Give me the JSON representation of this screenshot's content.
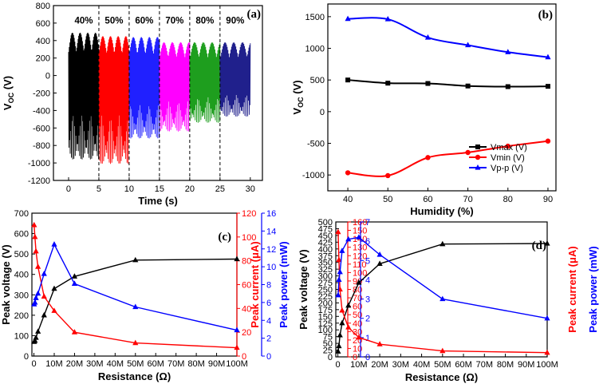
{
  "chart_data": [
    {
      "id": "a",
      "type": "line",
      "panel_label": "(a)",
      "xlabel": "Time (s)",
      "ylabel": "V",
      "ylabel_sub": "OC",
      "ylabel_unit": " (V)",
      "xlim": [
        -2.5,
        32
      ],
      "ylim": [
        -1200,
        800
      ],
      "x_ticks": [
        0,
        5,
        10,
        15,
        20,
        25,
        30
      ],
      "y_ticks": [
        -1200,
        -1000,
        -800,
        -600,
        -400,
        -200,
        0,
        200,
        400,
        600,
        800
      ],
      "section_boundaries": [
        5,
        10,
        15,
        20,
        25
      ],
      "segments": [
        {
          "label": "40%",
          "start": 0,
          "end": 5,
          "color": "#000000",
          "max": 490,
          "min": -960,
          "cycles": 48
        },
        {
          "label": "50%",
          "start": 5,
          "end": 10,
          "color": "#ff0000",
          "max": 450,
          "min": -1010,
          "cycles": 48
        },
        {
          "label": "60%",
          "start": 10,
          "end": 15,
          "color": "#2020ff",
          "max": 440,
          "min": -720,
          "cycles": 46
        },
        {
          "label": "70%",
          "start": 15,
          "end": 20,
          "color": "#ff00ff",
          "max": 380,
          "min": -640,
          "cycles": 44
        },
        {
          "label": "80%",
          "start": 20,
          "end": 25,
          "color": "#1e9e1e",
          "max": 380,
          "min": -540,
          "cycles": 42
        },
        {
          "label": "90%",
          "start": 25,
          "end": 30,
          "color": "#20208c",
          "max": 380,
          "min": -470,
          "cycles": 42
        }
      ]
    },
    {
      "id": "b",
      "type": "line",
      "panel_label": "(b)",
      "xlabel": "Humidity (%)",
      "ylabel": "V",
      "ylabel_sub": "OC",
      "ylabel_unit": " (V)",
      "xlim": [
        35,
        92
      ],
      "ylim": [
        -1250,
        1700
      ],
      "x_ticks": [
        40,
        50,
        60,
        70,
        80,
        90
      ],
      "y_ticks": [
        -1000,
        -500,
        0,
        500,
        1000,
        1500
      ],
      "x": [
        40,
        50,
        60,
        70,
        80,
        90
      ],
      "series": [
        {
          "name": "Vmax (V)",
          "color": "#000000",
          "marker": "square",
          "values": [
            500,
            450,
            445,
            405,
            395,
            400
          ]
        },
        {
          "name": "Vmin (V)",
          "color": "#ff0000",
          "marker": "circle",
          "values": [
            -965,
            -1010,
            -725,
            -645,
            -545,
            -465
          ]
        },
        {
          "name": "Vp-p (V)",
          "color": "#0000ff",
          "marker": "triangle",
          "values": [
            1465,
            1460,
            1170,
            1050,
            940,
            860
          ]
        }
      ],
      "legend_position": "bottom-right"
    },
    {
      "id": "c",
      "type": "line",
      "panel_label": "(c)",
      "xlabel": "Resistance (Ω)",
      "x_ticks": [
        0,
        10,
        20,
        30,
        40,
        50,
        60,
        70,
        80,
        90,
        100
      ],
      "x_tick_labels": [
        "0",
        "10M",
        "20M",
        "30M",
        "40M",
        "50M",
        "60M",
        "70M",
        "80M",
        "90M",
        "100M"
      ],
      "xlim": [
        -1,
        100
      ],
      "y_axes": [
        {
          "label": "Peak voltage (V)",
          "color": "#000000",
          "side": "left",
          "range": [
            0,
            700
          ],
          "ticks": [
            0,
            100,
            200,
            300,
            400,
            500,
            600,
            700
          ]
        },
        {
          "label": "Peak current (μA)",
          "color": "#ff0000",
          "side": "right",
          "range": [
            0,
            120
          ],
          "ticks": [
            0,
            20,
            40,
            60,
            80,
            100,
            120
          ]
        },
        {
          "label": "Peak power (mW)",
          "color": "#0000ff",
          "side": "right-outer",
          "range": [
            0,
            16
          ],
          "ticks": [
            0,
            2,
            4,
            6,
            8,
            10,
            12,
            14,
            16
          ]
        }
      ],
      "series": [
        {
          "name": "Peak voltage",
          "axis": 0,
          "color": "#000000",
          "x": [
            0.1,
            0.5,
            1,
            2,
            5,
            10,
            20,
            50,
            100
          ],
          "values": [
            70,
            75,
            90,
            120,
            200,
            330,
            390,
            470,
            475
          ]
        },
        {
          "name": "Peak current",
          "axis": 1,
          "color": "#ff0000",
          "x": [
            0.1,
            0.5,
            1,
            2,
            5,
            10,
            20,
            50,
            100
          ],
          "values": [
            110,
            100,
            88,
            75,
            50,
            38,
            20,
            11,
            7
          ]
        },
        {
          "name": "Peak power",
          "axis": 2,
          "color": "#0000ff",
          "x": [
            0.1,
            0.5,
            1,
            2,
            5,
            10,
            20,
            50,
            100
          ],
          "values": [
            5.8,
            6.0,
            6.5,
            7.0,
            9.2,
            12.5,
            8.1,
            5.5,
            2.9
          ]
        }
      ]
    },
    {
      "id": "d",
      "type": "line",
      "panel_label": "(d)",
      "xlabel": "Resistance (Ω)",
      "x_ticks": [
        0,
        10,
        20,
        30,
        40,
        50,
        60,
        70,
        80,
        90,
        100
      ],
      "x_tick_labels": [
        "0",
        "10M",
        "20M",
        "30M",
        "40M",
        "50M",
        "60M",
        "70M",
        "80M",
        "90M",
        "100M"
      ],
      "xlim": [
        -1,
        100
      ],
      "y_axes": [
        {
          "label": "Peak voltage (V)",
          "color": "#000000",
          "side": "left",
          "range": [
            0,
            500
          ],
          "ticks": [
            0,
            25,
            50,
            75,
            100,
            125,
            150,
            175,
            200,
            225,
            250,
            275,
            300,
            325,
            350,
            375,
            400,
            425,
            450,
            475,
            500
          ]
        },
        {
          "label": "Peak current (μA)",
          "color": "#ff0000",
          "side": "right",
          "range": [
            0,
            160
          ],
          "ticks": [
            0,
            10,
            20,
            30,
            40,
            50,
            60,
            70,
            80,
            90,
            100,
            110,
            120,
            130,
            140,
            150,
            160
          ]
        },
        {
          "label": "Peak power (mW)",
          "color": "#0000ff",
          "side": "right-outer",
          "range": [
            0,
            7
          ],
          "ticks": [
            0,
            1,
            2,
            3,
            4,
            5,
            6,
            7
          ]
        }
      ],
      "series": [
        {
          "name": "Peak voltage",
          "axis": 0,
          "color": "#000000",
          "x": [
            0.1,
            0.5,
            1,
            2,
            5,
            10,
            20,
            50,
            100
          ],
          "values": [
            20,
            40,
            80,
            125,
            190,
            275,
            345,
            418,
            420
          ]
        },
        {
          "name": "Peak current",
          "axis": 1,
          "color": "#ff0000",
          "x": [
            0.1,
            0.5,
            1,
            2,
            5,
            10,
            20,
            50,
            100
          ],
          "values": [
            148,
            115,
            80,
            55,
            35,
            23,
            15,
            7,
            5
          ]
        },
        {
          "name": "Peak power",
          "axis": 2,
          "color": "#0000ff",
          "x": [
            0.1,
            0.5,
            1,
            2,
            5,
            10,
            20,
            50,
            100
          ],
          "values": [
            3.2,
            4.0,
            4.4,
            5.5,
            6.1,
            6.2,
            5.3,
            3.0,
            2.0
          ]
        }
      ]
    }
  ]
}
